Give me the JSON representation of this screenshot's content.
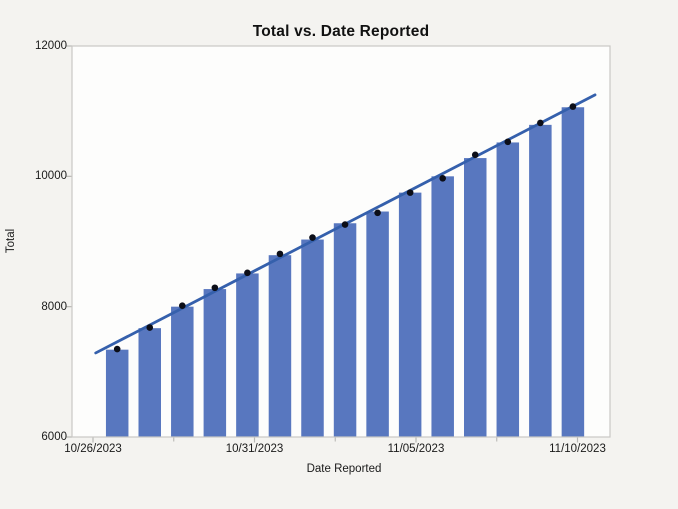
{
  "chart": {
    "colors": {
      "page_background": "#F4F3F0",
      "plot_background": "#FDFDFC",
      "plot_border": "#C9C8C5",
      "tick_mark": "#B9B8B5",
      "bar": "#5877BF",
      "trend_line": "#3560AC",
      "marker": "#0C0E18",
      "text": "#1A1A1A",
      "title_text": "#111111"
    }
  },
  "chart_data": {
    "type": "bar",
    "title": "Total vs. Date Reported",
    "xlabel": "Date Reported",
    "ylabel": "Total",
    "ylim": [
      6000,
      12000
    ],
    "y_ticks": [
      6000,
      8000,
      10000,
      12000
    ],
    "x_major_tick_labels": [
      "10/26/2023",
      "10/31/2023",
      "11/05/2023",
      "11/10/2023"
    ],
    "x_minor_ticks_between_majors": true,
    "grid": false,
    "legend": "none",
    "categories": [
      "10/27/2023",
      "10/28/2023",
      "10/29/2023",
      "10/30/2023",
      "10/31/2023",
      "11/01/2023",
      "11/02/2023",
      "11/03/2023",
      "11/04/2023",
      "11/05/2023",
      "11/06/2023",
      "11/07/2023",
      "11/08/2023",
      "11/09/2023",
      "11/10/2023"
    ],
    "series": [
      {
        "name": "Total (bars)",
        "type": "bar",
        "values": [
          7340,
          7670,
          8000,
          8270,
          8510,
          8790,
          9030,
          9280,
          9460,
          9750,
          10000,
          10280,
          10520,
          10790,
          11060
        ]
      },
      {
        "name": "Total (points)",
        "type": "scatter",
        "values": [
          7350,
          7680,
          8015,
          8290,
          8520,
          8810,
          9060,
          9260,
          9440,
          9750,
          9970,
          10330,
          10530,
          10820,
          11070
        ]
      },
      {
        "name": "Linear fit",
        "type": "trendline",
        "y_start": 7290,
        "y_end": 11250,
        "x_start_day_offset": -0.66,
        "x_end_day_offset": 14.68
      }
    ]
  }
}
